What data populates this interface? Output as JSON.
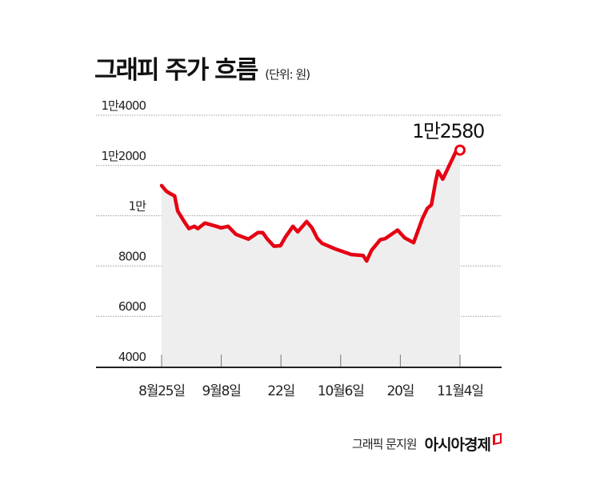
{
  "title": "그래피 주가 흐름",
  "unit": "(단위: 원)",
  "credit": "그래픽 문지원",
  "brand": "아시아경제",
  "colors": {
    "line": "#e60012",
    "area": "#eeeeee",
    "grid": "#9a9a9a",
    "axis": "#222222"
  },
  "chart_data": {
    "type": "line",
    "title": "그래피 주가 흐름",
    "subtitle": "(단위: 원)",
    "xlabel": "",
    "ylabel": "원",
    "ylim": [
      4000,
      14000
    ],
    "grid": true,
    "y_ticks": [
      4000,
      6000,
      8000,
      10000,
      12000,
      14000
    ],
    "y_tick_labels": [
      "4000",
      "6000",
      "8000",
      "1만",
      "1만2000",
      "1만4000"
    ],
    "x_tick_labels": [
      "8월25일",
      "9월8일",
      "22일",
      "10월6일",
      "20일",
      "11월4일"
    ],
    "annotation": {
      "label": "1만2580",
      "value": 12580,
      "at": "11월4일"
    },
    "series": [
      {
        "name": "그래피 주가",
        "x": [
          0,
          0.8,
          1.4,
          2.2,
          2.7,
          3.8,
          4.6,
          5.5,
          6.1,
          7.3,
          9.2,
          10.0,
          11.2,
          12.5,
          14.6,
          16.2,
          17.0,
          17.8,
          18.9,
          20.0,
          20.8,
          22.1,
          22.9,
          24.4,
          25.3,
          26.2,
          27.0,
          29.2,
          31.9,
          33.9,
          34.5,
          35.3,
          36.8,
          37.6,
          39.7,
          40.9,
          42.4,
          43.9,
          44.7,
          45.4,
          46.1,
          46.5,
          47.3,
          49.5,
          50.2
        ],
        "values": [
          11200,
          10980,
          10890,
          10790,
          10190,
          9770,
          9490,
          9580,
          9490,
          9710,
          9580,
          9520,
          9580,
          9260,
          9070,
          9330,
          9330,
          9070,
          8790,
          8810,
          9140,
          9580,
          9360,
          9770,
          9520,
          9100,
          8900,
          8680,
          8460,
          8420,
          8200,
          8620,
          9050,
          9090,
          9430,
          9120,
          8930,
          9900,
          10290,
          10440,
          11360,
          11780,
          11460,
          12550,
          12580
        ]
      }
    ]
  }
}
